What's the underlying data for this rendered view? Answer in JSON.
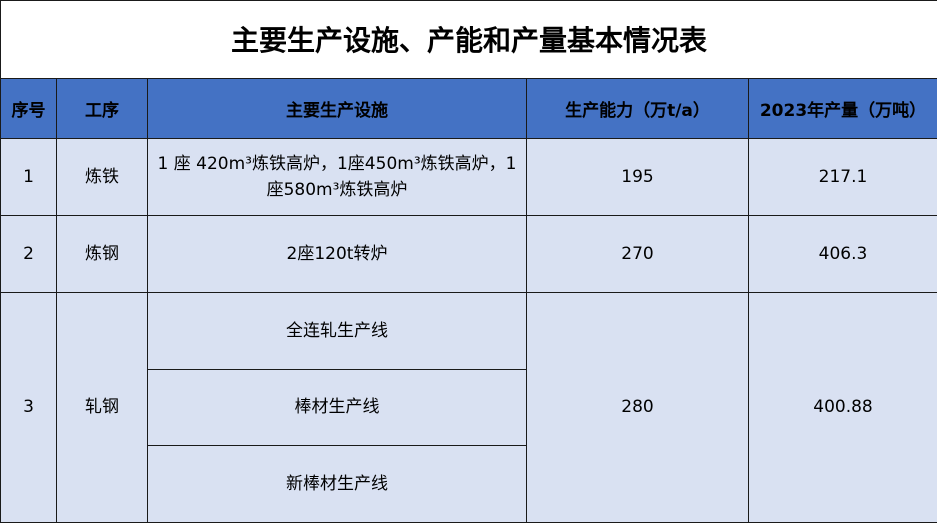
{
  "title": "主要生产设施、产能和产量基本情况表",
  "colors": {
    "header_bg": "#4472C4",
    "body_bg": "#D9E1F2"
  },
  "headers": [
    "序号",
    "工序",
    "主要生产设施",
    "生产能力（万t/a）",
    "2023年产量（万吨）"
  ],
  "rows": [
    {
      "no": "1",
      "process": "炼铁",
      "facilities": [
        "1 座 420m³炼铁高炉，1座450m³炼铁高炉，1座580m³炼铁高炉"
      ],
      "capacity": "195",
      "output": "217.1"
    },
    {
      "no": "2",
      "process": "炼钢",
      "facilities": [
        "2座120t转炉"
      ],
      "capacity": "270",
      "output": "406.3"
    },
    {
      "no": "3",
      "process": "轧钢",
      "facilities": [
        "全连轧生产线",
        "棒材生产线",
        "新棒材生产线"
      ],
      "capacity": "280",
      "output": "400.88"
    }
  ]
}
